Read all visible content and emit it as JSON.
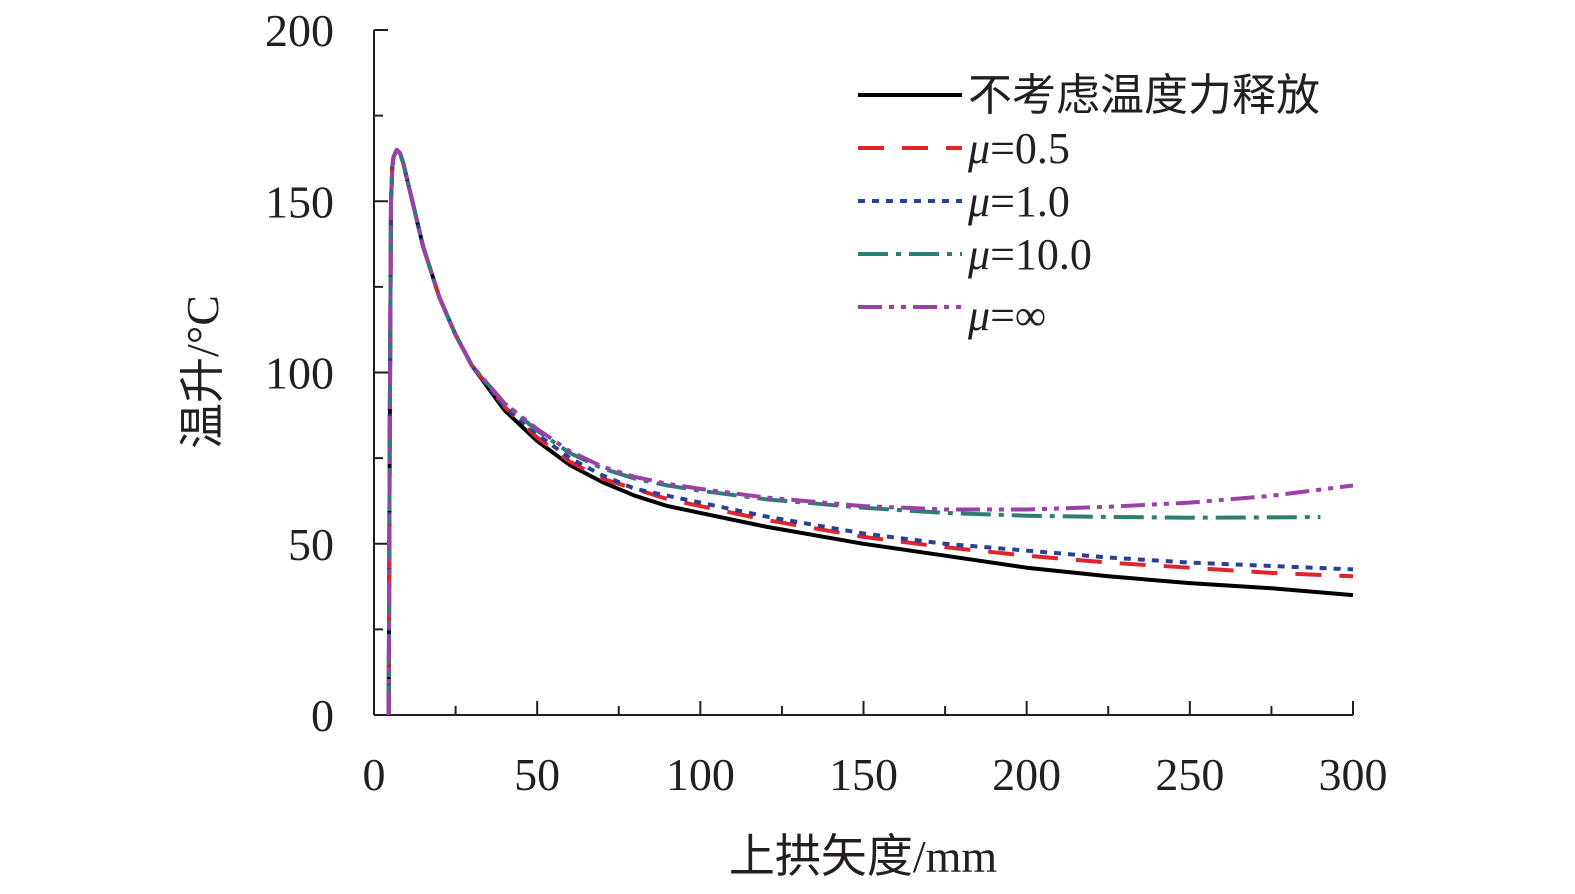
{
  "chart_data": {
    "type": "line",
    "title": "",
    "xlabel": "上拱矢度/mm",
    "ylabel": "温升/°C",
    "xlim": [
      0,
      300
    ],
    "ylim": [
      0,
      200
    ],
    "xticks": [
      "0",
      "50",
      "100",
      "150",
      "200",
      "250",
      "300"
    ],
    "yticks": [
      "0",
      "50",
      "100",
      "150",
      "200"
    ],
    "grid": false,
    "legend_position": "top-right",
    "series": [
      {
        "name": "不考虑温度力释放",
        "color": "#000000",
        "dash": "solid",
        "x": [
          4.5,
          4.8,
          5.2,
          5.6,
          6,
          7,
          8,
          9,
          10,
          12,
          15,
          20,
          25,
          30,
          40,
          50,
          60,
          70,
          80,
          90,
          100,
          120,
          150,
          175,
          200,
          225,
          250,
          275,
          300
        ],
        "y": [
          0,
          80,
          150,
          160,
          163,
          165,
          164,
          161,
          157,
          149,
          137,
          122,
          111,
          102,
          89,
          80,
          73,
          68,
          64,
          61,
          59,
          55,
          50,
          46.5,
          43,
          40.5,
          38.5,
          37,
          35
        ]
      },
      {
        "name": "μ=0.5",
        "name_label": "=0.5",
        "color": "#e0242b",
        "dash": "26 18",
        "x": [
          4.5,
          4.8,
          5.2,
          5.6,
          6,
          7,
          8,
          9,
          10,
          12,
          15,
          20,
          25,
          30,
          40,
          50,
          60,
          70,
          80,
          90,
          100,
          120,
          150,
          175,
          200,
          225,
          250,
          275,
          300
        ],
        "y": [
          0,
          80,
          150,
          160,
          163,
          165,
          164,
          161,
          157,
          149,
          137,
          122,
          111,
          102,
          90,
          81,
          74,
          69,
          66,
          63,
          61,
          57,
          52,
          49,
          46.5,
          44.5,
          43,
          41.5,
          40.5
        ]
      },
      {
        "name": "μ=1.0",
        "name_label": "=1.0",
        "color": "#2a3f96",
        "dash": "7 7",
        "x": [
          4.5,
          4.8,
          5.2,
          5.6,
          6,
          7,
          8,
          9,
          10,
          12,
          15,
          20,
          25,
          30,
          40,
          50,
          60,
          70,
          80,
          90,
          100,
          120,
          150,
          175,
          200,
          225,
          250,
          275,
          300
        ],
        "y": [
          0,
          80,
          150,
          160,
          163,
          165,
          164,
          161,
          157,
          149,
          137,
          122,
          111,
          102,
          90,
          82,
          75,
          70,
          66,
          64,
          62,
          58,
          53,
          50,
          48,
          46,
          44.5,
          43.5,
          42.5
        ]
      },
      {
        "name": "μ=10.0",
        "name_label": "=10.0",
        "color": "#2e7d72",
        "dash": "30 8 5 8",
        "x": [
          4.5,
          4.8,
          5.2,
          5.6,
          6,
          7,
          8,
          9,
          10,
          12,
          15,
          20,
          25,
          30,
          40,
          50,
          60,
          70,
          80,
          90,
          100,
          120,
          150,
          175,
          200,
          225,
          250,
          275,
          290
        ],
        "y": [
          0,
          80,
          150,
          160,
          163,
          165,
          164,
          161,
          157,
          149,
          137,
          122,
          111,
          102,
          91,
          83,
          76.5,
          72,
          69,
          67,
          65.5,
          63,
          60.5,
          59,
          58.2,
          57.8,
          57.6,
          57.7,
          57.8
        ]
      },
      {
        "name": "μ=∞",
        "name_label": "=∞",
        "color": "#9b3fa9",
        "dash": "24 7 5 7 5 7",
        "x": [
          4.5,
          4.8,
          5.2,
          5.6,
          6,
          7,
          8,
          9,
          10,
          12,
          15,
          20,
          25,
          30,
          40,
          50,
          60,
          70,
          80,
          90,
          100,
          120,
          150,
          175,
          200,
          225,
          250,
          275,
          300
        ],
        "y": [
          0,
          80,
          150,
          160,
          163,
          165,
          164,
          161,
          157,
          149,
          137,
          122,
          111,
          102,
          91,
          83.5,
          77,
          72.5,
          69.5,
          67.5,
          66,
          63.5,
          61,
          60,
          60,
          60.8,
          62,
          64,
          67
        ]
      }
    ]
  }
}
